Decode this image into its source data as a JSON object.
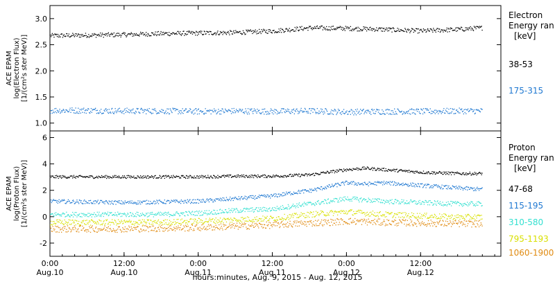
{
  "chart_data": [
    {
      "type": "scatter",
      "panel": "electron",
      "ylabel": [
        "ACE EPAM",
        "log(Electron Flux)",
        "[1/(cm²s ster MeV)]"
      ],
      "ylim": [
        0.85,
        3.25
      ],
      "yticks": [
        1.0,
        1.5,
        2.0,
        2.5,
        3.0
      ],
      "ytick_labels": [
        "1.0",
        "1.5",
        "2.0",
        "2.5",
        "3.0"
      ],
      "legend": {
        "title": [
          "Electron",
          "Energy ran",
          "[keV]"
        ],
        "placement": "right"
      },
      "series": [
        {
          "name": "38-53",
          "color": "#000000",
          "x_hours": [
            0,
            6,
            12,
            18,
            24,
            30,
            36,
            42,
            48,
            54,
            60,
            66,
            70
          ],
          "y": [
            2.68,
            2.69,
            2.7,
            2.72,
            2.73,
            2.74,
            2.77,
            2.83,
            2.82,
            2.8,
            2.77,
            2.8,
            2.83
          ]
        },
        {
          "name": "175-315",
          "color": "#1f78d1",
          "x_hours": [
            0,
            6,
            12,
            18,
            24,
            30,
            36,
            42,
            48,
            54,
            60,
            66,
            70
          ],
          "y": [
            1.25,
            1.25,
            1.24,
            1.24,
            1.23,
            1.24,
            1.23,
            1.24,
            1.22,
            1.23,
            1.23,
            1.24,
            1.24
          ]
        }
      ]
    },
    {
      "type": "scatter",
      "panel": "proton",
      "ylabel": [
        "ACE EPAM",
        "log(Proton Flux)",
        "[1/(cm²s ster MeV)]"
      ],
      "ylim": [
        -3.0,
        6.5
      ],
      "yticks": [
        -2,
        0,
        2,
        4,
        6
      ],
      "ytick_labels": [
        "-2",
        "0",
        "2",
        "4",
        "6"
      ],
      "legend": {
        "title": [
          "Proton",
          "Energy ran",
          "[keV]"
        ],
        "placement": "right"
      },
      "series": [
        {
          "name": "47-68",
          "color": "#000000",
          "x_hours": [
            0,
            6,
            12,
            18,
            24,
            30,
            36,
            42,
            45,
            48,
            51,
            54,
            60,
            66,
            70
          ],
          "y": [
            3.05,
            3.05,
            3.05,
            3.05,
            3.05,
            3.1,
            3.1,
            3.2,
            3.4,
            3.6,
            3.7,
            3.6,
            3.4,
            3.3,
            3.3
          ]
        },
        {
          "name": "115-195",
          "color": "#1f78d1",
          "x_hours": [
            0,
            6,
            12,
            18,
            24,
            30,
            36,
            40,
            42,
            45,
            48,
            51,
            54,
            60,
            66,
            70
          ],
          "y": [
            1.2,
            1.15,
            1.1,
            1.15,
            1.2,
            1.4,
            1.6,
            1.9,
            2.0,
            2.3,
            2.6,
            2.5,
            2.6,
            2.4,
            2.2,
            2.1
          ]
        },
        {
          "name": "310-580",
          "color": "#33e0d0",
          "x_hours": [
            0,
            6,
            12,
            18,
            24,
            30,
            36,
            40,
            42,
            45,
            48,
            51,
            54,
            60,
            66,
            70
          ],
          "y": [
            0.2,
            0.2,
            0.2,
            0.2,
            0.3,
            0.5,
            0.6,
            0.9,
            1.0,
            1.2,
            1.4,
            1.3,
            1.2,
            1.1,
            1.0,
            1.0
          ]
        },
        {
          "name": "795-1193",
          "color": "#d8e000",
          "x_hours": [
            0,
            6,
            12,
            18,
            24,
            30,
            36,
            40,
            42,
            45,
            48,
            51,
            54,
            60,
            66,
            70
          ],
          "y": [
            -0.4,
            -0.4,
            -0.4,
            -0.4,
            -0.3,
            -0.2,
            -0.1,
            0.1,
            0.2,
            0.3,
            0.4,
            0.3,
            0.2,
            0.1,
            0.0,
            0.0
          ]
        },
        {
          "name": "1060-1900",
          "color": "#e08a10",
          "x_hours": [
            0,
            6,
            12,
            18,
            24,
            30,
            36,
            40,
            42,
            45,
            48,
            51,
            54,
            60,
            66,
            70
          ],
          "y": [
            -0.9,
            -0.9,
            -0.9,
            -0.85,
            -0.8,
            -0.7,
            -0.6,
            -0.5,
            -0.45,
            -0.4,
            -0.3,
            -0.35,
            -0.4,
            -0.45,
            -0.5,
            -0.5
          ]
        }
      ]
    }
  ],
  "xaxis": {
    "label": "hours:minutes, Aug.  9, 2015 - Aug. 12, 2015",
    "xlim_hours": [
      0,
      73
    ],
    "ticks": [
      {
        "h": 0,
        "time": "0:00",
        "date": "Aug.10"
      },
      {
        "h": 12,
        "time": "12:00",
        "date": "Aug.10"
      },
      {
        "h": 24,
        "time": "0:00",
        "date": "Aug.11"
      },
      {
        "h": 36,
        "time": "12:00",
        "date": "Aug.11"
      },
      {
        "h": 48,
        "time": "0:00",
        "date": "Aug.12"
      },
      {
        "h": 60,
        "time": "12:00",
        "date": "Aug.12"
      }
    ]
  }
}
